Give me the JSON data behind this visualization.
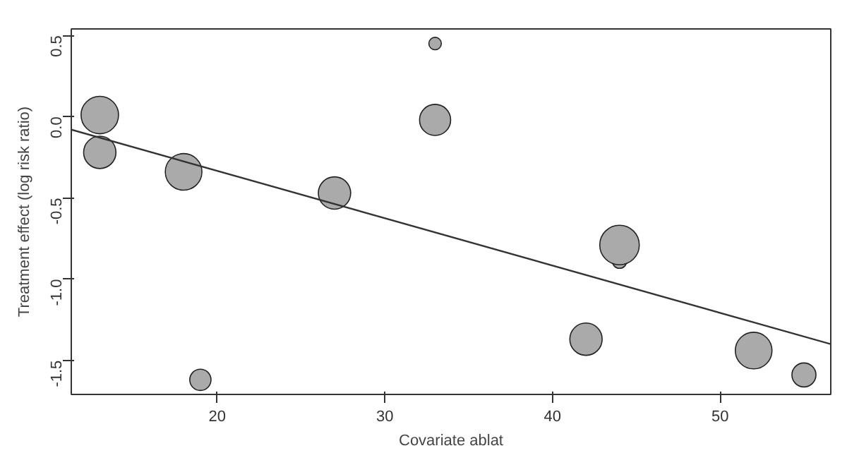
{
  "chart_data": {
    "type": "bubble",
    "xlabel": "Covariate ablat",
    "ylabel": "Treatment effect (log risk ratio)",
    "xlim": [
      11.3,
      56.6
    ],
    "ylim": [
      -1.71,
      0.54
    ],
    "xticks": [
      20,
      30,
      40,
      50
    ],
    "yticks": [
      {
        "value": -1.5,
        "label": "-1.5"
      },
      {
        "value": -1.0,
        "label": "-1.0"
      },
      {
        "value": -0.5,
        "label": "-0.5"
      },
      {
        "value": 0,
        "label": "0.0"
      },
      {
        "value": 0.5,
        "label": "0.5"
      }
    ],
    "series": [
      {
        "color": "#aaaaaa",
        "x": [
          44,
          33,
          19,
          55,
          13,
          33,
          27,
          42,
          13,
          18,
          52,
          44
        ],
        "values": [
          -0.89,
          0.45,
          -1.62,
          -1.59,
          -0.22,
          -0.02,
          -0.47,
          -1.37,
          0.01,
          -0.34,
          -1.44,
          -0.79
        ],
        "sizes": [
          0.13,
          0.1,
          0.29,
          0.37,
          0.67,
          0.62,
          0.67,
          0.67,
          0.9,
          0.86,
          0.86,
          1
        ]
      },
      {
        "type": "line",
        "color": "#333333",
        "x": [
          11.3,
          56.6
        ],
        "values": [
          -0.08,
          -1.4
        ]
      }
    ]
  }
}
